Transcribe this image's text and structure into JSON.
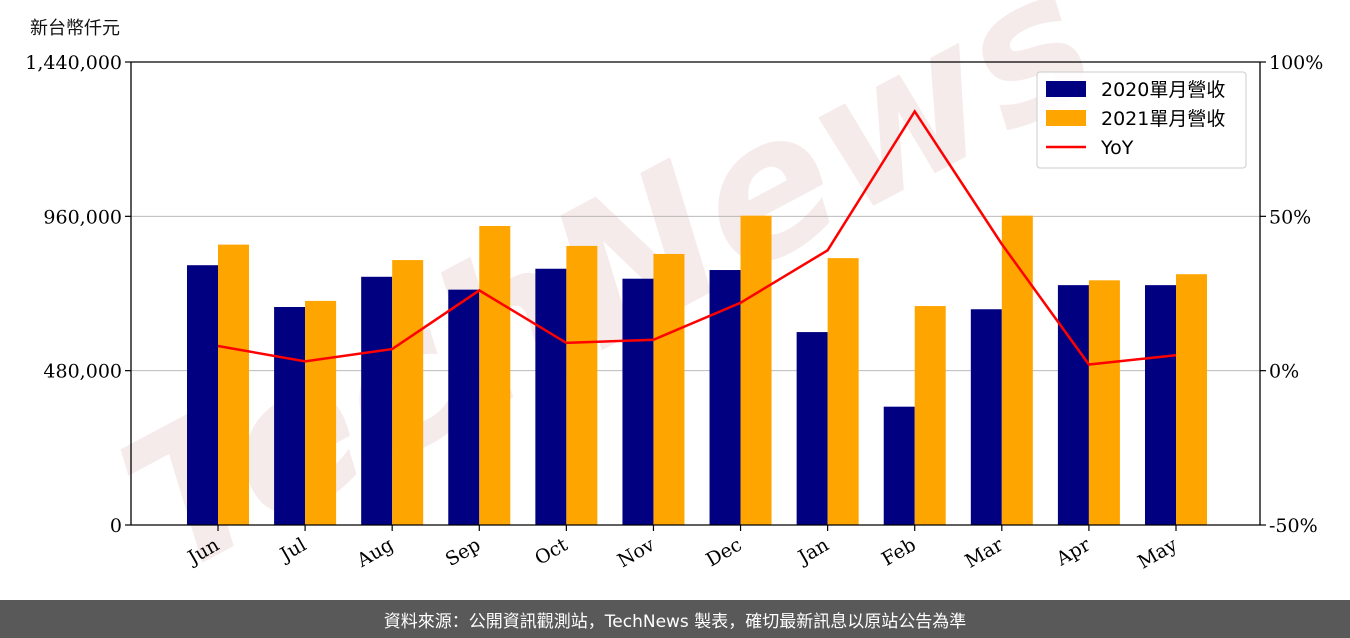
{
  "chart_data": {
    "type": "bar",
    "ylabel": "新台幣仟元",
    "categories": [
      "Jun",
      "Jul",
      "Aug",
      "Sep",
      "Oct",
      "Nov",
      "Dec",
      "Jan",
      "Feb",
      "Mar",
      "Apr",
      "May"
    ],
    "series": [
      {
        "name": "2020單月營收",
        "color": "#000080",
        "values": [
          808000,
          678000,
          772000,
          732000,
          797000,
          766000,
          793000,
          600000,
          368000,
          671000,
          746000,
          746000
        ]
      },
      {
        "name": "2021單月營收",
        "color": "#FFA500",
        "values": [
          872000,
          697000,
          824000,
          930000,
          868000,
          843000,
          962000,
          830000,
          681000,
          962000,
          761000,
          780000
        ]
      }
    ],
    "line_series": {
      "name": "YoY",
      "color": "#FF0000",
      "axis": "right",
      "values": [
        8,
        3,
        7,
        26,
        9,
        10,
        22,
        39,
        84,
        41,
        2,
        5
      ]
    },
    "ylim": [
      0,
      1440000
    ],
    "yticks": [
      "0",
      "480,000",
      "960,000",
      "1,440,000"
    ],
    "ylim_right": [
      -50,
      100
    ],
    "yticks_right": [
      "-50%",
      "0%",
      "50%",
      "100%"
    ],
    "grid": "horizontal",
    "legend": "top-right",
    "watermark": "TechNews"
  },
  "footer": {
    "text": "資料來源：公開資訊觀測站，TechNews 製表，確切最新訊息以原站公告為準"
  }
}
